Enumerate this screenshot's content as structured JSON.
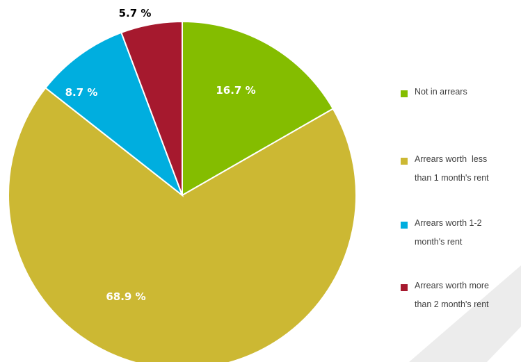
{
  "chart_data": {
    "type": "pie",
    "slices": [
      {
        "name": "Not in arrears",
        "value": 16.7,
        "label": "16.7 %",
        "color": "#84BD00"
      },
      {
        "name": "Arrears worth  less than 1 month's rent",
        "value": 68.9,
        "label": "68.9 %",
        "color": "#CCB833"
      },
      {
        "name": "Arrears worth 1-2 month's rent",
        "value": 8.7,
        "label": "8.7 %",
        "color": "#00AEDF"
      },
      {
        "name": "Arrears worth more than 2 month's rent",
        "value": 5.7,
        "label": "5.7 %",
        "color": "#A6192E"
      }
    ],
    "legend": {
      "placement": "right",
      "items": [
        {
          "lines": [
            "Not in arrears"
          ],
          "color": "#84BD00"
        },
        {
          "lines": [
            "Arrears worth  less",
            "than 1 month's rent"
          ],
          "color": "#CCB833"
        },
        {
          "lines": [
            "Arrears worth 1-2",
            "month's rent"
          ],
          "color": "#00AEDF"
        },
        {
          "lines": [
            "Arrears worth more",
            "than 2 month's rent"
          ],
          "color": "#A6192E"
        }
      ]
    }
  }
}
